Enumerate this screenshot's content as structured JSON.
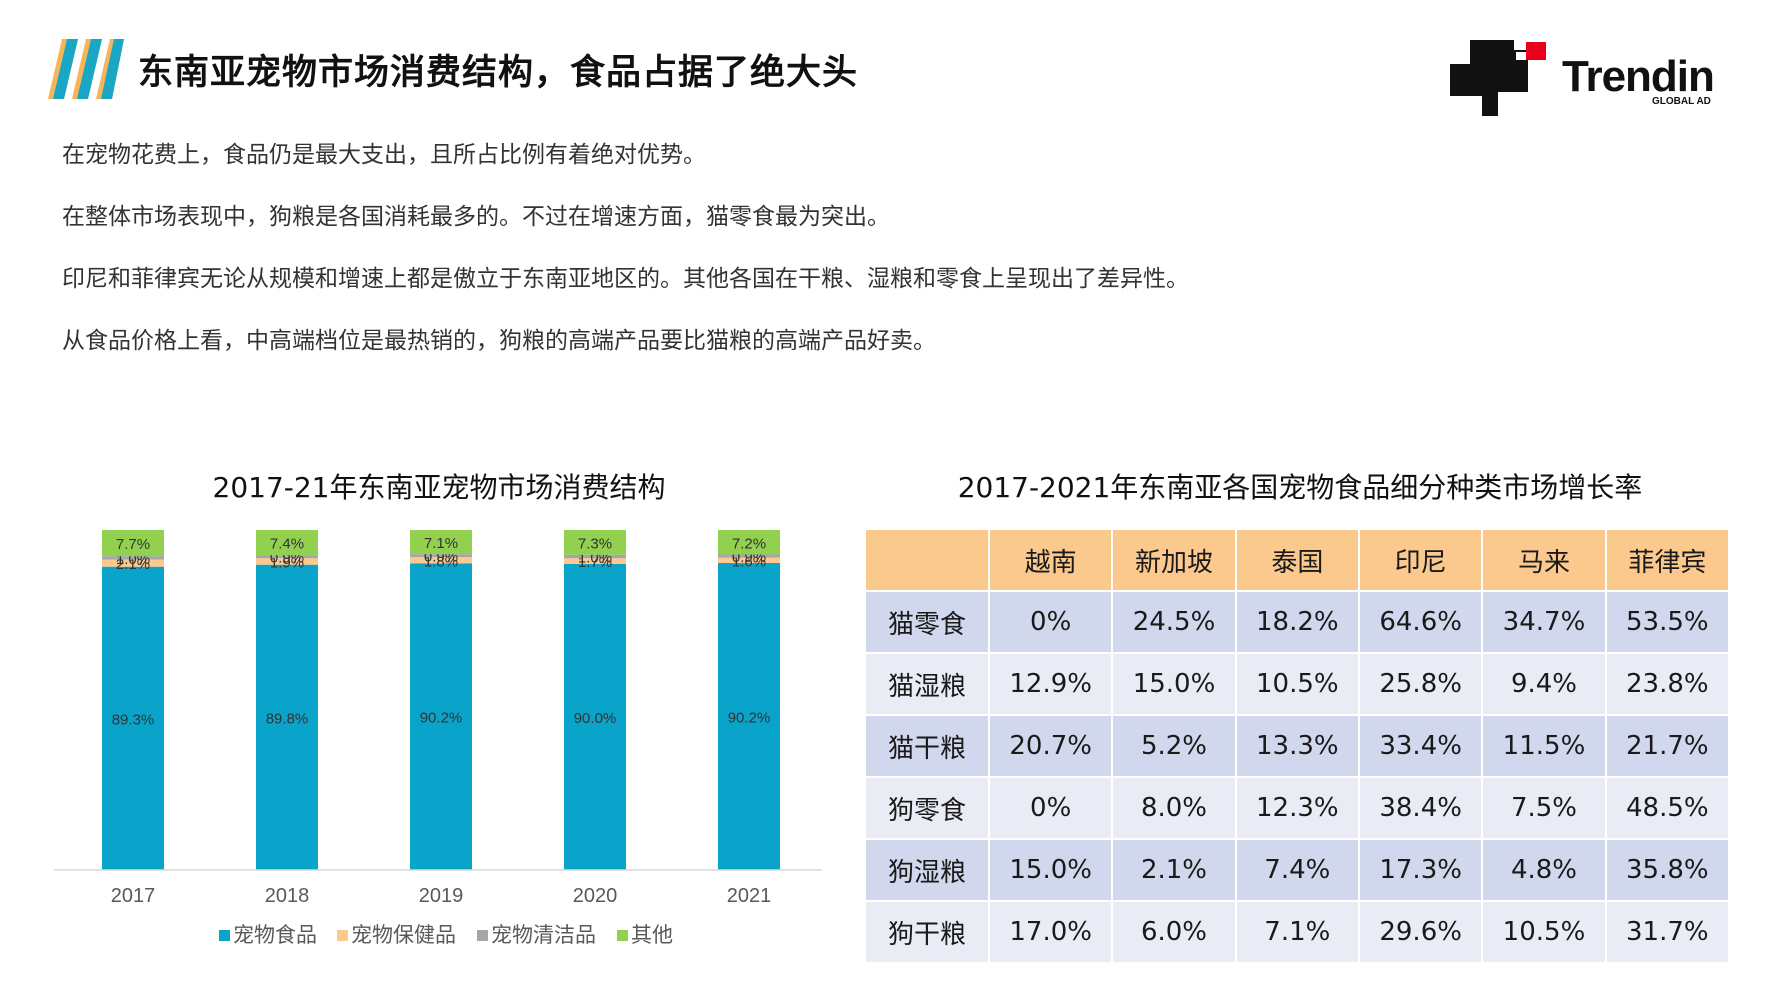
{
  "header": {
    "title": "东南亚宠物市场消费结构，食品占据了绝大头"
  },
  "logo": {
    "word": "Trendin",
    "sub": "GLOBAL AD"
  },
  "intro": [
    "在宠物花费上，食品仍是最大支出，且所占比例有着绝对优势。",
    "在整体市场表现中，狗粮是各国消耗最多的。不过在增速方面，猫零食最为突出。",
    "印尼和菲律宾无论从规模和增速上都是傲立于东南亚地区的。其他各国在干粮、湿粮和零食上呈现出了差异性。",
    "从食品价格上看，中高端档位是最热销的，狗粮的高端产品要比猫粮的高端产品好卖。"
  ],
  "chart_data": [
    {
      "type": "bar",
      "stacked": true,
      "title": "2017-21年东南亚宠物市场消费结构",
      "categories": [
        "2017",
        "2018",
        "2019",
        "2020",
        "2021"
      ],
      "series": [
        {
          "name": "宠物食品",
          "color": "#0aa3c9",
          "values": [
            89.3,
            89.8,
            90.2,
            90.0,
            90.2
          ],
          "labels": [
            "89.3%",
            "89.8%",
            "90.2%",
            "90.0%",
            "90.2%"
          ]
        },
        {
          "name": "宠物保健品",
          "color": "#fdc98e",
          "values": [
            2.1,
            1.9,
            1.8,
            1.7,
            1.6
          ],
          "labels": [
            "2.1%",
            "1.9%",
            "1.8%",
            "1.7%",
            "1.6%"
          ]
        },
        {
          "name": "宠物清洁品",
          "color": "#a6a6a6",
          "values": [
            1.0,
            0.9,
            0.9,
            1.0,
            0.9
          ],
          "labels": [
            "1.0%",
            "0.9%",
            "0.9%",
            "1.0%",
            "0.9%"
          ]
        },
        {
          "name": "其他",
          "color": "#92d050",
          "values": [
            7.7,
            7.4,
            7.1,
            7.3,
            7.2
          ],
          "labels": [
            "7.7%",
            "7.4%",
            "7.1%",
            "7.3%",
            "7.2%"
          ]
        }
      ],
      "legend": "bottom"
    },
    {
      "type": "table",
      "title": "2017-2021年东南亚各国宠物食品细分种类市场增长率",
      "columns": [
        "越南",
        "新加坡",
        "泰国",
        "印尼",
        "马来",
        "菲律宾"
      ],
      "rows": [
        {
          "label": "猫零食",
          "values": [
            "0%",
            "24.5%",
            "18.2%",
            "64.6%",
            "34.7%",
            "53.5%"
          ]
        },
        {
          "label": "猫湿粮",
          "values": [
            "12.9%",
            "15.0%",
            "10.5%",
            "25.8%",
            "9.4%",
            "23.8%"
          ]
        },
        {
          "label": "猫干粮",
          "values": [
            "20.7%",
            "5.2%",
            "13.3%",
            "33.4%",
            "11.5%",
            "21.7%"
          ]
        },
        {
          "label": "狗零食",
          "values": [
            "0%",
            "8.0%",
            "12.3%",
            "38.4%",
            "7.5%",
            "48.5%"
          ]
        },
        {
          "label": "狗湿粮",
          "values": [
            "15.0%",
            "2.1%",
            "7.4%",
            "17.3%",
            "4.8%",
            "35.8%"
          ]
        },
        {
          "label": "狗干粮",
          "values": [
            "17.0%",
            "6.0%",
            "7.1%",
            "29.6%",
            "10.5%",
            "31.7%"
          ]
        }
      ]
    }
  ]
}
